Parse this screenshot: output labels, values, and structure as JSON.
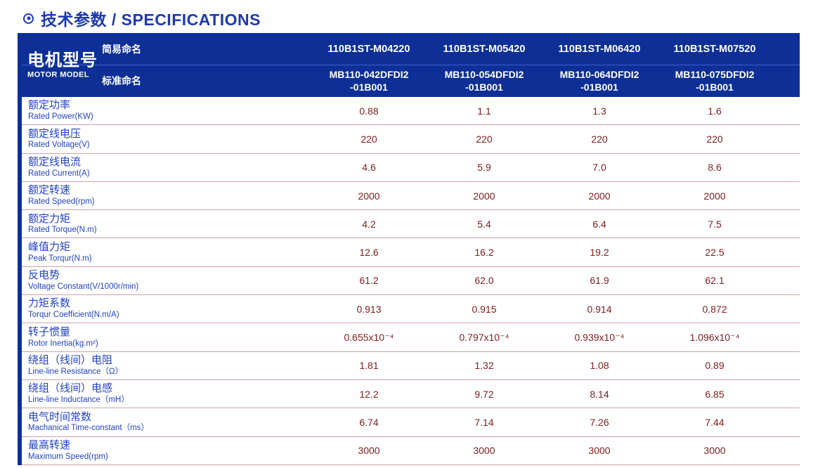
{
  "title": {
    "text": "技术参数 / SPECIFICATIONS",
    "icon": "circle-dot-icon"
  },
  "colors": {
    "header_background": "#0d2f96",
    "header_divider": "#3f5fc8",
    "title_blue": "#1d39b0",
    "label_blue": "#2342c5",
    "value_maroon": "#7d1c1c",
    "row_divider_pink": "#cfa2a2"
  },
  "header": {
    "motor_model_cn": "电机型号",
    "motor_model_en": "MOTOR MODEL",
    "simple_name_label": "简易命名",
    "standard_name_label": "标准命名",
    "models": [
      {
        "simple": "110B1ST-M04220",
        "standard": "MB110-042DFDI2\n-01B001"
      },
      {
        "simple": "110B1ST-M05420",
        "standard": "MB110-054DFDI2\n-01B001"
      },
      {
        "simple": "110B1ST-M06420",
        "standard": "MB110-064DFDI2\n-01B001"
      },
      {
        "simple": "110B1ST-M07520",
        "standard": "MB110-075DFDI2\n-01B001"
      }
    ]
  },
  "rows": [
    {
      "cn": "额定功率",
      "en": "Rated Power(KW)",
      "values": [
        "0.88",
        "1.1",
        "1.3",
        "1.6"
      ]
    },
    {
      "cn": "额定线电压",
      "en": "Rated Voltage(V)",
      "values": [
        "220",
        "220",
        "220",
        "220"
      ]
    },
    {
      "cn": "额定线电流",
      "en": "Rated Current(A)",
      "values": [
        "4.6",
        "5.9",
        "7.0",
        "8.6"
      ]
    },
    {
      "cn": "额定转速",
      "en": "Rated Speed(rpm)",
      "values": [
        "2000",
        "2000",
        "2000",
        "2000"
      ]
    },
    {
      "cn": "额定力矩",
      "en": "Rated Torque(N.m)",
      "values": [
        "4.2",
        "5.4",
        "6.4",
        "7.5"
      ]
    },
    {
      "cn": "峰值力矩",
      "en": "Peak Torqur(N.m)",
      "values": [
        "12.6",
        "16.2",
        "19.2",
        "22.5"
      ]
    },
    {
      "cn": "反电势",
      "en": "Voltage Constant(V/1000r/min)",
      "values": [
        "61.2",
        "62.0",
        "61.9",
        "62.1"
      ]
    },
    {
      "cn": "力矩系数",
      "en": "Torqur Coefficient(N.m/A)",
      "values": [
        "0.913",
        "0.915",
        "0.914",
        "0.872"
      ]
    },
    {
      "cn": "转子惯量",
      "en": "Rotor Inertia(kg.m²)",
      "values": [
        "0.655x10⁻⁴",
        "0.797x10⁻⁴",
        "0.939x10⁻⁴",
        "1.096x10⁻⁴"
      ]
    },
    {
      "cn": "绕组（线间）电阻",
      "en": "Line-line Resistance（Ω）",
      "values": [
        "1.81",
        "1.32",
        "1.08",
        "0.89"
      ]
    },
    {
      "cn": "绕组（线间）电感",
      "en": "Line-line Inductance（mH）",
      "values": [
        "12.2",
        "9.72",
        "8.14",
        "6.85"
      ]
    },
    {
      "cn": "电气时间常数",
      "en": "Machanical Time-constant（ms）",
      "values": [
        "6.74",
        "7.14",
        "7.26",
        "7.44"
      ]
    },
    {
      "cn": "最高转速",
      "en": "Maximum Speed(rpm)",
      "values": [
        "3000",
        "3000",
        "3000",
        "3000"
      ]
    }
  ]
}
